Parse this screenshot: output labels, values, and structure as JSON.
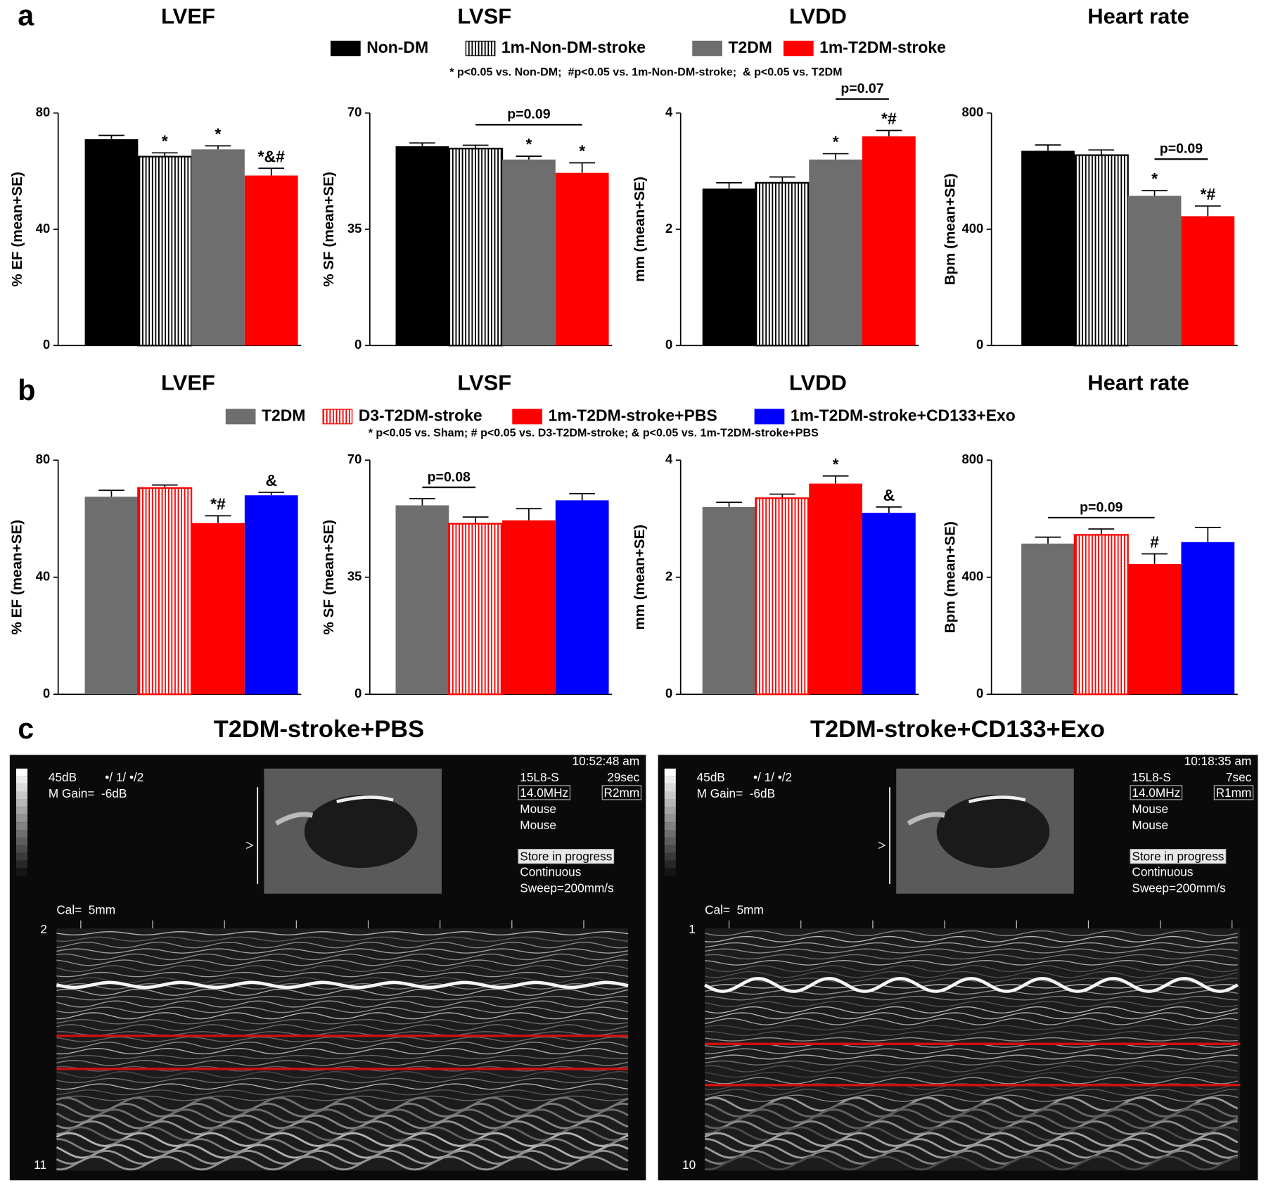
{
  "legends": [
    {
      "label": "a",
      "entries": [
        {
          "name": "Non-DM",
          "color": "#000000"
        },
        {
          "name": "1m-Non-DM-stroke",
          "color": "#000000",
          "pattern": "stripes"
        },
        {
          "name": "T2DM",
          "color": "#6e6e6e"
        },
        {
          "name": "1m-T2DM-stroke",
          "color": "#ff0000"
        }
      ],
      "note": "* p<0.05 vs. Non-DM;  #p<0.05 vs. 1m-Non-DM-stroke;  & p<0.05 vs. T2DM"
    },
    {
      "label": "b",
      "entries": [
        {
          "name": "T2DM",
          "color": "#6e6e6e"
        },
        {
          "name": "D3-T2DM-stroke",
          "color": "#ff0000",
          "pattern": "stripes"
        },
        {
          "name": "1m-T2DM-stroke+PBS",
          "color": "#ff0000"
        },
        {
          "name": "1m-T2DM-stroke+CD133+Exo",
          "color": "#0000ff"
        }
      ],
      "note": "* p<0.05 vs. Sham; # p<0.05 vs. D3-T2DM-stroke; & p<0.05 vs. 1m-T2DM-stroke+PBS"
    }
  ],
  "chart_data": [
    {
      "type": "bar",
      "group": 0,
      "title": "LVEF",
      "ylabel": "% EF (mean+SE)",
      "ylim": [
        0,
        80
      ],
      "yticks": [
        0,
        40,
        80
      ],
      "values": [
        71,
        65,
        67.5,
        58.5
      ],
      "errors": [
        1.3,
        1.3,
        1.2,
        2.5
      ],
      "annotations": [
        {
          "bar": 1,
          "text": "*"
        },
        {
          "bar": 2,
          "text": "*"
        },
        {
          "bar": 3,
          "text": "*&#"
        }
      ]
    },
    {
      "type": "bar",
      "group": 0,
      "title": "LVSF",
      "ylabel": "% SF (mean+SE)",
      "ylim": [
        0,
        70
      ],
      "yticks": [
        0,
        35,
        70
      ],
      "values": [
        60,
        59.3,
        56,
        52
      ],
      "errors": [
        1,
        1,
        1,
        3
      ],
      "annotations": [
        {
          "bar": 2,
          "text": "*"
        },
        {
          "bar": 3,
          "text": "*"
        }
      ],
      "brackets": [
        {
          "from": 1,
          "to": 3,
          "text": "p=0.09"
        }
      ]
    },
    {
      "type": "bar",
      "group": 0,
      "title": "LVDD",
      "ylabel": "mm (mean+SE)",
      "ylim": [
        0,
        4
      ],
      "yticks": [
        0,
        2,
        4
      ],
      "values": [
        2.7,
        2.8,
        3.2,
        3.6
      ],
      "errors": [
        0.1,
        0.1,
        0.1,
        0.1
      ],
      "annotations": [
        {
          "bar": 2,
          "text": "*"
        },
        {
          "bar": 3,
          "text": "*#"
        }
      ],
      "brackets": [
        {
          "from": 2,
          "to": 3,
          "text": "p=0.07"
        }
      ]
    },
    {
      "type": "bar",
      "group": 0,
      "title": "Heart rate",
      "ylabel": "Bpm (mean+SE)",
      "ylim": [
        0,
        800
      ],
      "yticks": [
        0,
        400,
        800
      ],
      "values": [
        670,
        655,
        515,
        445
      ],
      "errors": [
        20,
        18,
        18,
        35
      ],
      "annotations": [
        {
          "bar": 2,
          "text": "*"
        },
        {
          "bar": 3,
          "text": "*#"
        }
      ],
      "brackets": [
        {
          "from": 2,
          "to": 3,
          "text": "p=0.09"
        }
      ]
    },
    {
      "type": "bar",
      "group": 1,
      "title": "LVEF",
      "ylabel": "% EF (mean+SE)",
      "ylim": [
        0,
        80
      ],
      "yticks": [
        0,
        40,
        80
      ],
      "values": [
        67.5,
        70.5,
        58.5,
        68
      ],
      "errors": [
        2.2,
        1,
        2.5,
        1
      ],
      "annotations": [
        {
          "bar": 2,
          "text": "*#"
        },
        {
          "bar": 3,
          "text": "&"
        }
      ]
    },
    {
      "type": "bar",
      "group": 1,
      "title": "LVSF",
      "ylabel": "% SF (mean+SE)",
      "ylim": [
        0,
        70
      ],
      "yticks": [
        0,
        35,
        70
      ],
      "values": [
        56.5,
        51,
        52,
        58
      ],
      "errors": [
        2,
        2,
        3.5,
        2
      ],
      "brackets": [
        {
          "from": 0,
          "to": 1,
          "text": "p=0.08"
        }
      ]
    },
    {
      "type": "bar",
      "group": 1,
      "title": "LVDD",
      "ylabel": "mm (mean+SE)",
      "ylim": [
        0,
        4
      ],
      "yticks": [
        0,
        2,
        4
      ],
      "values": [
        3.2,
        3.35,
        3.6,
        3.1
      ],
      "errors": [
        0.08,
        0.07,
        0.13,
        0.1
      ],
      "annotations": [
        {
          "bar": 2,
          "text": "*"
        },
        {
          "bar": 3,
          "text": "&"
        }
      ]
    },
    {
      "type": "bar",
      "group": 1,
      "title": "Heart rate",
      "ylabel": "Bpm (mean+SE)",
      "ylim": [
        0,
        800
      ],
      "yticks": [
        0,
        400,
        800
      ],
      "values": [
        515,
        545,
        445,
        520
      ],
      "errors": [
        22,
        20,
        35,
        50
      ],
      "annotations": [
        {
          "bar": 2,
          "text": "#"
        }
      ],
      "brackets": [
        {
          "from": 0,
          "to": 2,
          "text": "p=0.09"
        }
      ]
    }
  ],
  "panel_c_label": "c",
  "echo": [
    {
      "title": "T2DM-stroke+PBS",
      "settings": [
        "45dB",
        "•/ 1/ •/2",
        "M Gain=  -6dB"
      ],
      "info": [
        "10:52:48 am",
        "15L8-S",
        "29sec",
        "14.0MHz",
        "R2mm",
        "Mouse",
        "Mouse",
        "Store in progress",
        "Continuous",
        "Sweep=200mm/s"
      ],
      "cal": "Cal=  5mm",
      "depth_top": "2",
      "depth_bottom": "11"
    },
    {
      "title": "T2DM-stroke+CD133+Exo",
      "settings": [
        "45dB",
        "•/ 1/ •/2",
        "M Gain=  -6dB"
      ],
      "info": [
        "10:18:35 am",
        "15L8-S",
        "7sec",
        "14.0MHz",
        "R1mm",
        "Mouse",
        "Mouse",
        "Store in progress",
        "Continuous",
        "Sweep=200mm/s"
      ],
      "cal": "Cal=  5mm",
      "depth_top": "1",
      "depth_bottom": "10"
    }
  ]
}
